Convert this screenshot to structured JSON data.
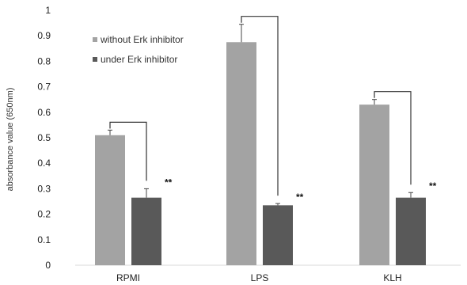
{
  "chart_data": {
    "type": "bar",
    "title": "",
    "xlabel": "",
    "ylabel": "absorbance value (650nm)",
    "ylim": [
      0,
      1
    ],
    "yticks": [
      "0",
      "0.1",
      "0.2",
      "0.3",
      "0.4",
      "0.5",
      "0.6",
      "0.7",
      "0.8",
      "0.9",
      "1"
    ],
    "grid": false,
    "legend_position": "top-left",
    "categories": [
      "RPMI",
      "LPS",
      "KLH"
    ],
    "series": [
      {
        "name": "without Erk inhibitor",
        "color": "#a3a3a3",
        "values": [
          0.51,
          0.875,
          0.63
        ],
        "errors": [
          0.02,
          0.07,
          0.02
        ]
      },
      {
        "name": "under Erk inhibitor",
        "color": "#595959",
        "values": [
          0.265,
          0.235,
          0.265
        ],
        "errors": [
          0.035,
          0.007,
          0.02
        ]
      }
    ],
    "significance": [
      "**",
      "**",
      "**"
    ]
  }
}
